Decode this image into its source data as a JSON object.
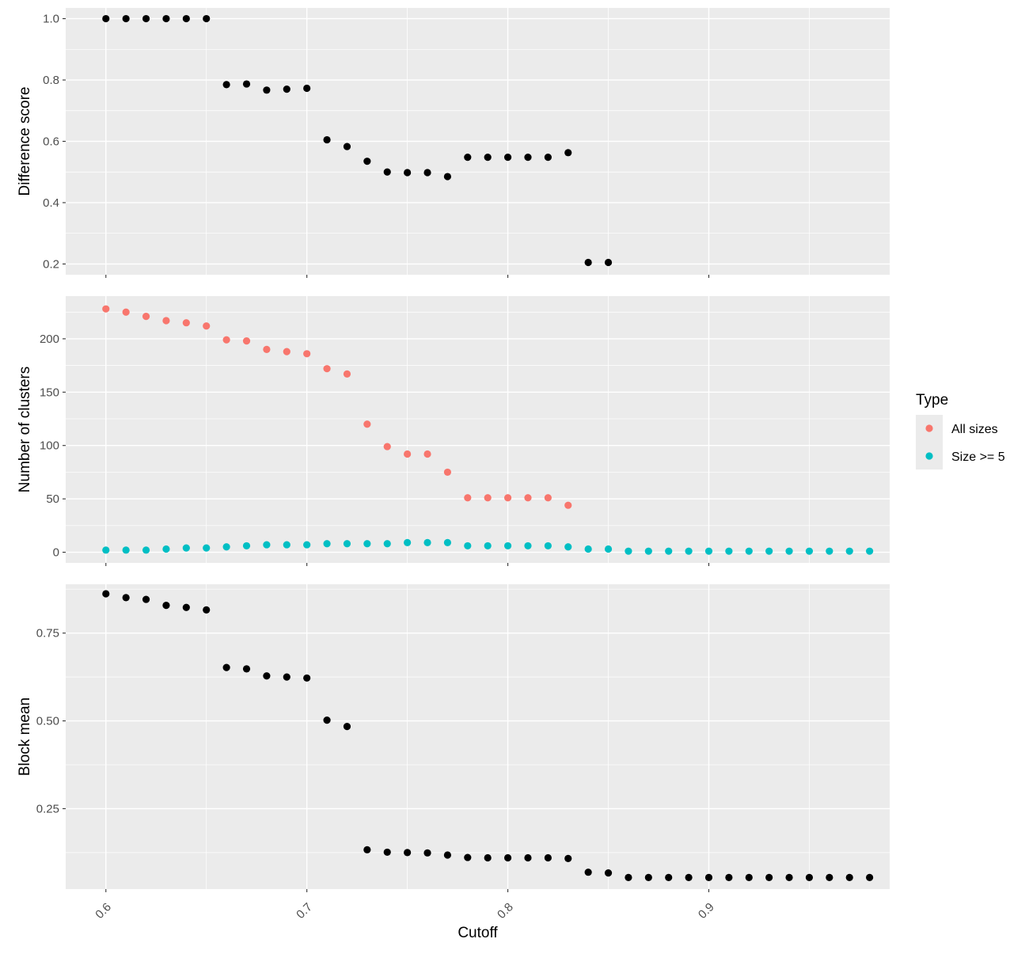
{
  "chart_data": [
    {
      "type": "scatter",
      "panel": "top",
      "xlabel": "",
      "ylabel": "Difference score",
      "xlim": [
        0.58,
        0.99
      ],
      "ylim": [
        0.165,
        1.035
      ],
      "xticks": [
        0.6,
        0.7,
        0.8,
        0.9
      ],
      "yticks": [
        0.2,
        0.4,
        0.6,
        0.8,
        1.0
      ],
      "ytick_labels": [
        "0.2",
        "0.4",
        "0.6",
        "0.8",
        "1.0"
      ],
      "series": [
        {
          "color": "#000000",
          "x": [
            0.6,
            0.61,
            0.62,
            0.63,
            0.64,
            0.65,
            0.66,
            0.67,
            0.68,
            0.69,
            0.7,
            0.71,
            0.72,
            0.73,
            0.74,
            0.75,
            0.76,
            0.77,
            0.78,
            0.79,
            0.8,
            0.81,
            0.82,
            0.83,
            0.84,
            0.85
          ],
          "y": [
            1.0,
            1.0,
            1.0,
            1.0,
            1.0,
            1.0,
            0.785,
            0.787,
            0.767,
            0.77,
            0.773,
            0.605,
            0.583,
            0.535,
            0.5,
            0.498,
            0.498,
            0.485,
            0.548,
            0.548,
            0.548,
            0.548,
            0.548,
            0.563,
            0.205,
            0.205
          ]
        }
      ]
    },
    {
      "type": "scatter",
      "panel": "middle",
      "xlabel": "",
      "ylabel": "Number of clusters",
      "xlim": [
        0.58,
        0.99
      ],
      "ylim": [
        -10,
        240
      ],
      "xticks": [
        0.6,
        0.7,
        0.8,
        0.9
      ],
      "yticks": [
        0,
        50,
        100,
        150,
        200
      ],
      "ytick_labels": [
        "0",
        "50",
        "100",
        "150",
        "200"
      ],
      "series": [
        {
          "name": "All sizes",
          "color": "#F8766D",
          "x": [
            0.6,
            0.61,
            0.62,
            0.63,
            0.64,
            0.65,
            0.66,
            0.67,
            0.68,
            0.69,
            0.7,
            0.71,
            0.72,
            0.73,
            0.74,
            0.75,
            0.76,
            0.77,
            0.78,
            0.79,
            0.8,
            0.81,
            0.82,
            0.83
          ],
          "y": [
            228,
            225,
            221,
            217,
            215,
            212,
            199,
            198,
            190,
            188,
            186,
            172,
            167,
            120,
            99,
            92,
            92,
            75,
            51,
            51,
            51,
            51,
            51,
            44
          ]
        },
        {
          "name": "Size >= 5",
          "color": "#00BFC4",
          "x": [
            0.6,
            0.61,
            0.62,
            0.63,
            0.64,
            0.65,
            0.66,
            0.67,
            0.68,
            0.69,
            0.7,
            0.71,
            0.72,
            0.73,
            0.74,
            0.75,
            0.76,
            0.77,
            0.78,
            0.79,
            0.8,
            0.81,
            0.82,
            0.83,
            0.84,
            0.85,
            0.86,
            0.87,
            0.88,
            0.89,
            0.9,
            0.91,
            0.92,
            0.93,
            0.94,
            0.95,
            0.96,
            0.97,
            0.98
          ],
          "y": [
            2,
            2,
            2,
            3,
            4,
            4,
            5,
            6,
            7,
            7,
            7,
            8,
            8,
            8,
            8,
            9,
            9,
            9,
            6,
            6,
            6,
            6,
            6,
            5,
            3,
            3,
            1,
            1,
            1,
            1,
            1,
            1,
            1,
            1,
            1,
            1,
            1,
            1,
            1
          ]
        }
      ]
    },
    {
      "type": "scatter",
      "panel": "bottom",
      "xlabel": "Cutoff",
      "ylabel": "Block mean",
      "xlim": [
        0.58,
        0.99
      ],
      "ylim": [
        0.021,
        0.889
      ],
      "xticks": [
        0.6,
        0.7,
        0.8,
        0.9
      ],
      "xtick_labels": [
        "0.6",
        "0.7",
        "0.8",
        "0.9"
      ],
      "yticks": [
        0.25,
        0.5,
        0.75
      ],
      "ytick_labels": [
        "0.25",
        "0.50",
        "0.75"
      ],
      "series": [
        {
          "color": "#000000",
          "x": [
            0.6,
            0.61,
            0.62,
            0.63,
            0.64,
            0.65,
            0.66,
            0.67,
            0.68,
            0.69,
            0.7,
            0.71,
            0.72,
            0.73,
            0.74,
            0.75,
            0.76,
            0.77,
            0.78,
            0.79,
            0.8,
            0.81,
            0.82,
            0.83,
            0.84,
            0.85,
            0.86,
            0.87,
            0.88,
            0.89,
            0.9,
            0.91,
            0.92,
            0.93,
            0.94,
            0.95,
            0.96,
            0.97,
            0.98
          ],
          "y": [
            0.862,
            0.851,
            0.846,
            0.829,
            0.823,
            0.816,
            0.652,
            0.648,
            0.628,
            0.625,
            0.622,
            0.502,
            0.484,
            0.133,
            0.126,
            0.125,
            0.124,
            0.118,
            0.111,
            0.11,
            0.11,
            0.11,
            0.11,
            0.108,
            0.069,
            0.067,
            0.054,
            0.054,
            0.054,
            0.054,
            0.054,
            0.054,
            0.054,
            0.054,
            0.054,
            0.054,
            0.054,
            0.054,
            0.054
          ]
        }
      ]
    }
  ],
  "legend": {
    "title": "Type",
    "placement": "right",
    "items": [
      {
        "label": "All sizes",
        "color": "#F8766D"
      },
      {
        "label": "Size >= 5",
        "color": "#00BFC4"
      }
    ]
  },
  "panel_background": "#EBEBEB",
  "grid_color": "#FFFFFF"
}
